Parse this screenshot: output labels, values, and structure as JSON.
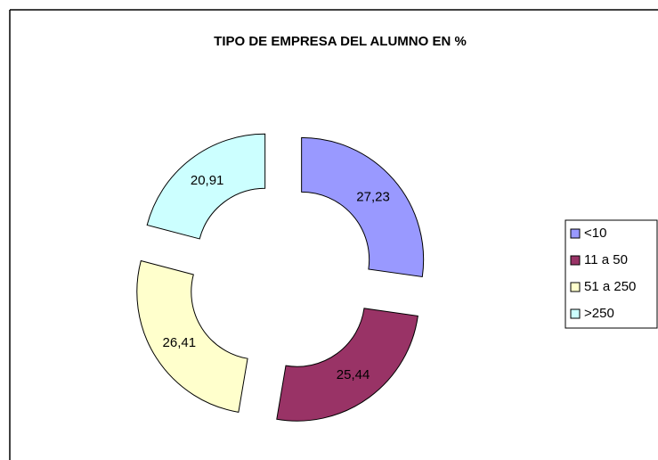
{
  "chart_data": {
    "type": "donut",
    "title": "TIPO DE EMPRESA DEL ALUMNO EN %",
    "categories": [
      "<10",
      "11 a 50",
      "51 a 250",
      ">250"
    ],
    "values": [
      27.23,
      25.44,
      26.41,
      20.91
    ],
    "value_labels": [
      "27,23",
      "25,44",
      "26,41",
      "20,91"
    ],
    "colors": [
      "#9999ff",
      "#993366",
      "#ffffcc",
      "#ccffff"
    ],
    "legend": "right"
  }
}
